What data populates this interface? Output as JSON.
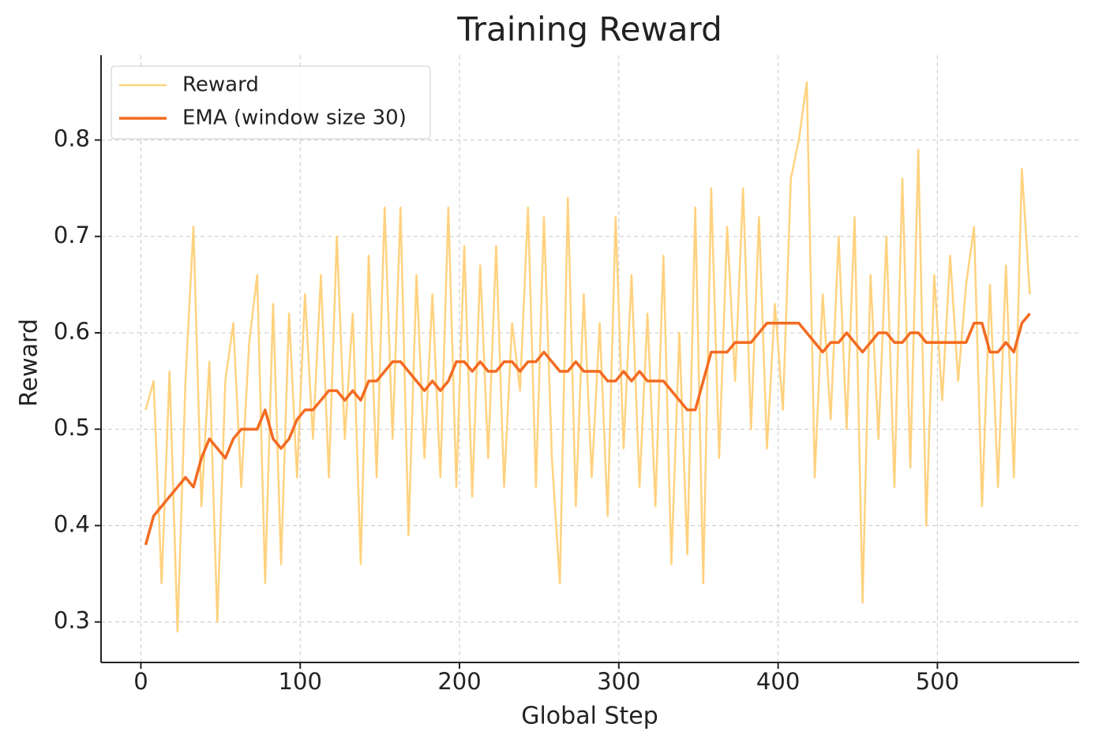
{
  "chart_data": {
    "type": "line",
    "title": "Training Reward",
    "xlabel": "Global Step",
    "ylabel": "Reward",
    "x": [
      3,
      8,
      13,
      18,
      23,
      28,
      33,
      38,
      43,
      48,
      53,
      58,
      63,
      68,
      73,
      78,
      83,
      88,
      93,
      98,
      103,
      108,
      113,
      118,
      123,
      128,
      133,
      138,
      143,
      148,
      153,
      158,
      163,
      168,
      173,
      178,
      183,
      188,
      193,
      198,
      203,
      208,
      213,
      218,
      223,
      228,
      233,
      238,
      243,
      248,
      253,
      258,
      263,
      268,
      273,
      278,
      283,
      288,
      293,
      298,
      303,
      308,
      313,
      318,
      323,
      328,
      333,
      338,
      343,
      348,
      353,
      358,
      363,
      368,
      373,
      378,
      383,
      388,
      393,
      398,
      403,
      408,
      413,
      418,
      423,
      428,
      433,
      438,
      443,
      448,
      453,
      458,
      463,
      468,
      473,
      478,
      483,
      488,
      493,
      498,
      503,
      508,
      513,
      518,
      523,
      528,
      533,
      538,
      543,
      548,
      553,
      558
    ],
    "series": [
      {
        "name": "Reward",
        "color": "#ffd27f",
        "width": 2.5,
        "values": [
          0.52,
          0.55,
          0.34,
          0.56,
          0.29,
          0.55,
          0.71,
          0.42,
          0.57,
          0.3,
          0.55,
          0.61,
          0.44,
          0.59,
          0.66,
          0.34,
          0.63,
          0.36,
          0.62,
          0.45,
          0.64,
          0.49,
          0.66,
          0.45,
          0.7,
          0.49,
          0.62,
          0.36,
          0.68,
          0.45,
          0.73,
          0.49,
          0.73,
          0.39,
          0.66,
          0.47,
          0.64,
          0.45,
          0.73,
          0.44,
          0.69,
          0.43,
          0.67,
          0.47,
          0.69,
          0.44,
          0.61,
          0.54,
          0.73,
          0.44,
          0.72,
          0.47,
          0.34,
          0.74,
          0.42,
          0.64,
          0.45,
          0.61,
          0.41,
          0.72,
          0.48,
          0.66,
          0.44,
          0.62,
          0.42,
          0.68,
          0.36,
          0.6,
          0.37,
          0.73,
          0.34,
          0.75,
          0.47,
          0.71,
          0.55,
          0.75,
          0.5,
          0.72,
          0.48,
          0.63,
          0.52,
          0.76,
          0.8,
          0.86,
          0.45,
          0.64,
          0.51,
          0.7,
          0.5,
          0.72,
          0.32,
          0.66,
          0.49,
          0.7,
          0.44,
          0.76,
          0.46,
          0.79,
          0.4,
          0.66,
          0.53,
          0.68,
          0.55,
          0.65,
          0.71,
          0.42,
          0.65,
          0.44,
          0.67,
          0.45,
          0.77,
          0.64
        ]
      },
      {
        "name": "EMA (window size 30)",
        "color": "#f26b21",
        "width": 3.5,
        "values": [
          0.38,
          0.41,
          0.42,
          0.43,
          0.44,
          0.45,
          0.44,
          0.47,
          0.49,
          0.48,
          0.47,
          0.49,
          0.5,
          0.5,
          0.5,
          0.52,
          0.49,
          0.48,
          0.49,
          0.51,
          0.52,
          0.52,
          0.53,
          0.54,
          0.54,
          0.53,
          0.54,
          0.53,
          0.55,
          0.55,
          0.56,
          0.57,
          0.57,
          0.56,
          0.55,
          0.54,
          0.55,
          0.54,
          0.55,
          0.57,
          0.57,
          0.56,
          0.57,
          0.56,
          0.56,
          0.57,
          0.57,
          0.56,
          0.57,
          0.57,
          0.58,
          0.57,
          0.56,
          0.56,
          0.57,
          0.56,
          0.56,
          0.56,
          0.55,
          0.55,
          0.56,
          0.55,
          0.56,
          0.55,
          0.55,
          0.55,
          0.54,
          0.53,
          0.52,
          0.52,
          0.55,
          0.58,
          0.58,
          0.58,
          0.59,
          0.59,
          0.59,
          0.6,
          0.61,
          0.61,
          0.61,
          0.61,
          0.61,
          0.6,
          0.59,
          0.58,
          0.59,
          0.59,
          0.6,
          0.59,
          0.58,
          0.59,
          0.6,
          0.6,
          0.59,
          0.59,
          0.6,
          0.6,
          0.59,
          0.59,
          0.59,
          0.59,
          0.59,
          0.59,
          0.61,
          0.61,
          0.58,
          0.58,
          0.59,
          0.58,
          0.61,
          0.62
        ]
      }
    ],
    "xlim": [
      -25,
      589
    ],
    "ylim": [
      0.258,
      0.888
    ],
    "xticks": [
      0,
      100,
      200,
      300,
      400,
      500
    ],
    "yticks": [
      0.3,
      0.4,
      0.5,
      0.6,
      0.7,
      0.8
    ],
    "grid": true,
    "legend": "upper left"
  }
}
